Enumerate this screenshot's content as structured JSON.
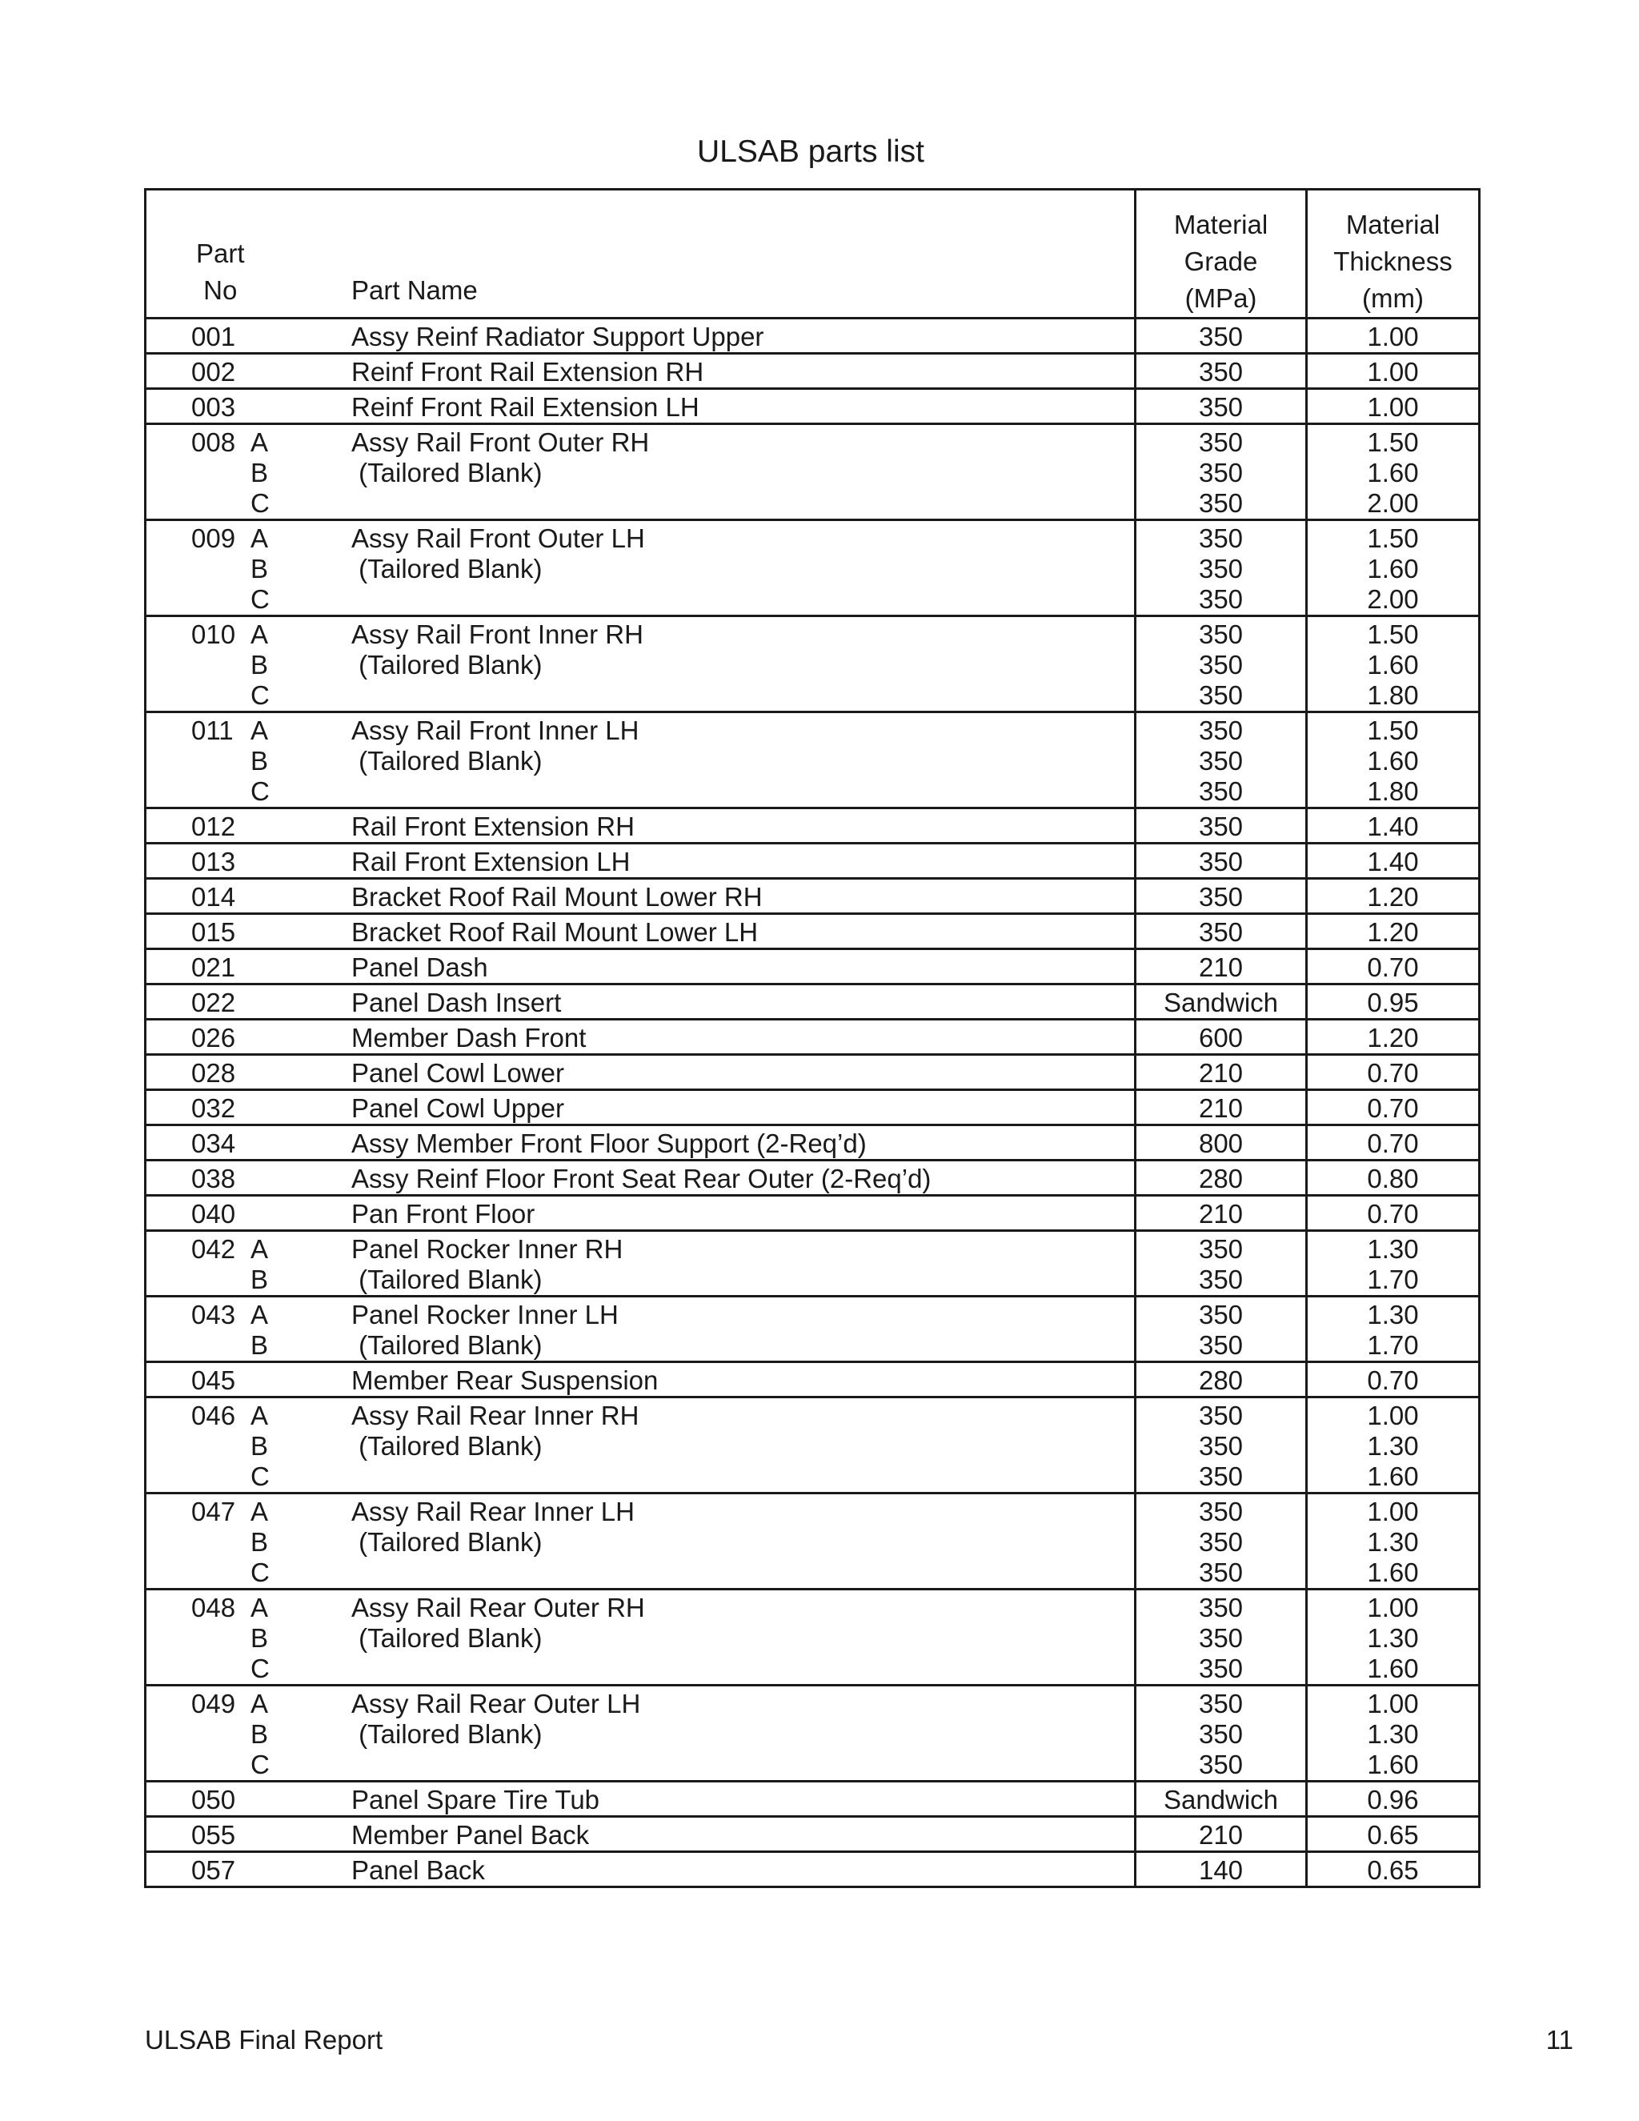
{
  "title": "ULSAB parts list",
  "header": {
    "part_no": [
      "Part",
      "No"
    ],
    "part_name": "Part Name",
    "grade": [
      "Material",
      "Grade",
      "(MPa)"
    ],
    "thickness": [
      "Material",
      "Thickness",
      "(mm)"
    ]
  },
  "rows": [
    {
      "no": "001",
      "sub": [],
      "name": [
        "Assy Reinf Radiator Support Upper"
      ],
      "grade": [
        "350"
      ],
      "thickness": [
        "1.00"
      ]
    },
    {
      "no": "002",
      "sub": [],
      "name": [
        "Reinf Front Rail Extension RH"
      ],
      "grade": [
        "350"
      ],
      "thickness": [
        "1.00"
      ]
    },
    {
      "no": "003",
      "sub": [],
      "name": [
        "Reinf Front Rail Extension LH"
      ],
      "grade": [
        "350"
      ],
      "thickness": [
        "1.00"
      ]
    },
    {
      "no": "008",
      "sub": [
        "A",
        "B",
        "C"
      ],
      "name": [
        "Assy Rail Front Outer RH",
        " (Tailored Blank)"
      ],
      "grade": [
        "350",
        "350",
        "350"
      ],
      "thickness": [
        "1.50",
        "1.60",
        "2.00"
      ]
    },
    {
      "no": "009",
      "sub": [
        "A",
        "B",
        "C"
      ],
      "name": [
        "Assy Rail Front Outer LH",
        " (Tailored Blank)"
      ],
      "grade": [
        "350",
        "350",
        "350"
      ],
      "thickness": [
        "1.50",
        "1.60",
        "2.00"
      ]
    },
    {
      "no": "010",
      "sub": [
        "A",
        "B",
        "C"
      ],
      "name": [
        "Assy Rail Front Inner RH",
        " (Tailored Blank)"
      ],
      "grade": [
        "350",
        "350",
        "350"
      ],
      "thickness": [
        "1.50",
        "1.60",
        "1.80"
      ]
    },
    {
      "no": "011",
      "sub": [
        "A",
        "B",
        "C"
      ],
      "name": [
        "Assy Rail Front Inner LH",
        " (Tailored Blank)"
      ],
      "grade": [
        "350",
        "350",
        "350"
      ],
      "thickness": [
        "1.50",
        "1.60",
        "1.80"
      ]
    },
    {
      "no": "012",
      "sub": [],
      "name": [
        "Rail Front Extension RH"
      ],
      "grade": [
        "350"
      ],
      "thickness": [
        "1.40"
      ]
    },
    {
      "no": "013",
      "sub": [],
      "name": [
        "Rail Front Extension LH"
      ],
      "grade": [
        "350"
      ],
      "thickness": [
        "1.40"
      ]
    },
    {
      "no": "014",
      "sub": [],
      "name": [
        "Bracket Roof Rail Mount Lower RH"
      ],
      "grade": [
        "350"
      ],
      "thickness": [
        "1.20"
      ]
    },
    {
      "no": "015",
      "sub": [],
      "name": [
        "Bracket Roof Rail Mount Lower LH"
      ],
      "grade": [
        "350"
      ],
      "thickness": [
        "1.20"
      ]
    },
    {
      "no": "021",
      "sub": [],
      "name": [
        "Panel Dash"
      ],
      "grade": [
        "210"
      ],
      "thickness": [
        "0.70"
      ]
    },
    {
      "no": "022",
      "sub": [],
      "name": [
        "Panel Dash Insert"
      ],
      "grade": [
        "Sandwich"
      ],
      "thickness": [
        "0.95"
      ]
    },
    {
      "no": "026",
      "sub": [],
      "name": [
        "Member Dash Front"
      ],
      "grade": [
        "600"
      ],
      "thickness": [
        "1.20"
      ]
    },
    {
      "no": "028",
      "sub": [],
      "name": [
        "Panel Cowl Lower"
      ],
      "grade": [
        "210"
      ],
      "thickness": [
        "0.70"
      ]
    },
    {
      "no": "032",
      "sub": [],
      "name": [
        "Panel Cowl Upper"
      ],
      "grade": [
        "210"
      ],
      "thickness": [
        "0.70"
      ]
    },
    {
      "no": "034",
      "sub": [],
      "name": [
        "Assy Member Front Floor Support (2-Req’d)"
      ],
      "grade": [
        "800"
      ],
      "thickness": [
        "0.70"
      ]
    },
    {
      "no": "038",
      "sub": [],
      "name": [
        "Assy Reinf Floor Front Seat Rear Outer (2-Req’d)"
      ],
      "grade": [
        "280"
      ],
      "thickness": [
        "0.80"
      ]
    },
    {
      "no": "040",
      "sub": [],
      "name": [
        "Pan Front Floor"
      ],
      "grade": [
        "210"
      ],
      "thickness": [
        "0.70"
      ]
    },
    {
      "no": "042",
      "sub": [
        "A",
        "B"
      ],
      "name": [
        "Panel Rocker Inner RH",
        " (Tailored Blank)"
      ],
      "grade": [
        "350",
        "350"
      ],
      "thickness": [
        "1.30",
        "1.70"
      ]
    },
    {
      "no": "043",
      "sub": [
        "A",
        "B"
      ],
      "name": [
        "Panel Rocker Inner LH",
        " (Tailored Blank)"
      ],
      "grade": [
        "350",
        "350"
      ],
      "thickness": [
        "1.30",
        "1.70"
      ]
    },
    {
      "no": "045",
      "sub": [],
      "name": [
        "Member Rear Suspension"
      ],
      "grade": [
        "280"
      ],
      "thickness": [
        "0.70"
      ]
    },
    {
      "no": "046",
      "sub": [
        "A",
        "B",
        "C"
      ],
      "name": [
        "Assy Rail Rear Inner RH",
        " (Tailored Blank)"
      ],
      "grade": [
        "350",
        "350",
        "350"
      ],
      "thickness": [
        "1.00",
        "1.30",
        "1.60"
      ]
    },
    {
      "no": "047",
      "sub": [
        "A",
        "B",
        "C"
      ],
      "name": [
        "Assy Rail Rear Inner LH",
        " (Tailored Blank)"
      ],
      "grade": [
        "350",
        "350",
        "350"
      ],
      "thickness": [
        "1.00",
        "1.30",
        "1.60"
      ]
    },
    {
      "no": "048",
      "sub": [
        "A",
        "B",
        "C"
      ],
      "name": [
        "Assy Rail Rear Outer RH",
        " (Tailored Blank)"
      ],
      "grade": [
        "350",
        "350",
        "350"
      ],
      "thickness": [
        "1.00",
        "1.30",
        "1.60"
      ]
    },
    {
      "no": "049",
      "sub": [
        "A",
        "B",
        "C"
      ],
      "name": [
        "Assy Rail Rear Outer LH",
        " (Tailored Blank)"
      ],
      "grade": [
        "350",
        "350",
        "350"
      ],
      "thickness": [
        "1.00",
        "1.30",
        "1.60"
      ]
    },
    {
      "no": "050",
      "sub": [],
      "name": [
        "Panel Spare Tire Tub"
      ],
      "grade": [
        "Sandwich"
      ],
      "thickness": [
        "0.96"
      ]
    },
    {
      "no": "055",
      "sub": [],
      "name": [
        "Member Panel Back"
      ],
      "grade": [
        "210"
      ],
      "thickness": [
        "0.65"
      ]
    },
    {
      "no": "057",
      "sub": [],
      "name": [
        "Panel Back"
      ],
      "grade": [
        "140"
      ],
      "thickness": [
        "0.65"
      ]
    }
  ],
  "footer": {
    "left": "ULSAB Final Report",
    "page": "11"
  }
}
